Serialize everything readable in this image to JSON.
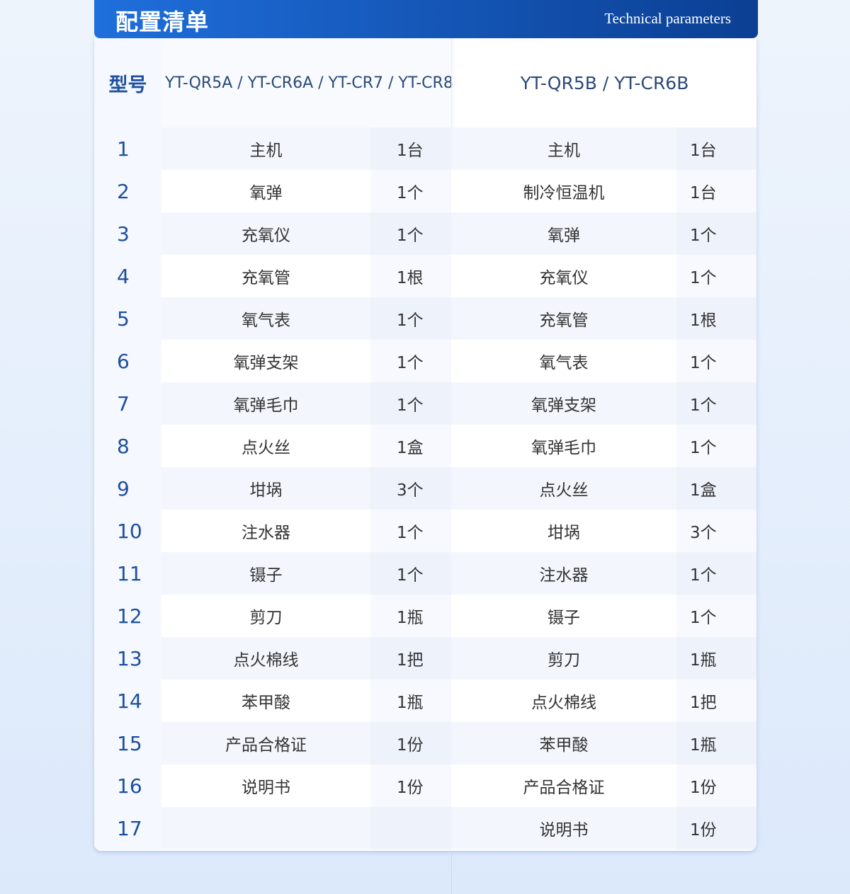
{
  "header": {
    "title": "配置清单",
    "subtitle": "Technical parameters"
  },
  "table": {
    "model_label": "型号",
    "models": [
      "YT-QR5A / YT-CR6A / YT-CR7 / YT-CR8",
      "YT-QR5B / YT-CR6B"
    ],
    "numbers": [
      1,
      2,
      3,
      4,
      5,
      6,
      7,
      8,
      9,
      10,
      11,
      12,
      13,
      14,
      15,
      16,
      17
    ],
    "left": [
      [
        "主机",
        "1台"
      ],
      [
        "氧弹",
        "1个"
      ],
      [
        "充氧仪",
        "1个"
      ],
      [
        "充氧管",
        "1根"
      ],
      [
        "氧气表",
        "1个"
      ],
      [
        "氧弹支架",
        "1个"
      ],
      [
        "氧弹毛巾",
        "1个"
      ],
      [
        "点火丝",
        "1盒"
      ],
      [
        "坩埚",
        "3个"
      ],
      [
        "注水器",
        "1个"
      ],
      [
        "镊子",
        "1个"
      ],
      [
        "剪刀",
        "1瓶"
      ],
      [
        "点火棉线",
        "1把"
      ],
      [
        "苯甲酸",
        "1瓶"
      ],
      [
        "产品合格证",
        "1份"
      ],
      [
        "说明书",
        "1份"
      ]
    ],
    "right": [
      [
        "主机",
        "1台"
      ],
      [
        "制冷恒温机",
        "1台"
      ],
      [
        "氧弹",
        "1个"
      ],
      [
        "充氧仪",
        "1个"
      ],
      [
        "充氧管",
        "1根"
      ],
      [
        "氧气表",
        "1个"
      ],
      [
        "氧弹支架",
        "1个"
      ],
      [
        "氧弹毛巾",
        "1个"
      ],
      [
        "点火丝",
        "1盒"
      ],
      [
        "坩埚",
        "3个"
      ],
      [
        "注水器",
        "1个"
      ],
      [
        "镊子",
        "1个"
      ],
      [
        "剪刀",
        "1瓶"
      ],
      [
        "点火棉线",
        "1把"
      ],
      [
        "苯甲酸",
        "1瓶"
      ],
      [
        "产品合格证",
        "1份"
      ],
      [
        "说明书",
        "1份"
      ]
    ]
  }
}
